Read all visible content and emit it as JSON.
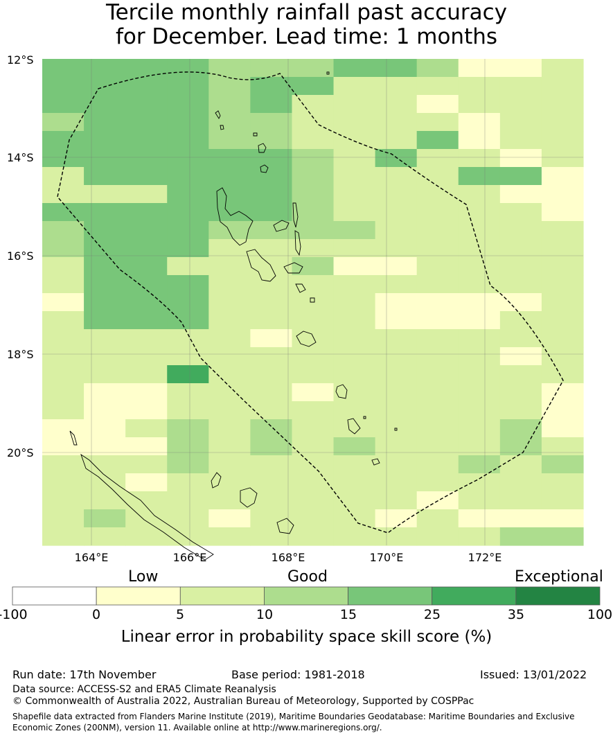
{
  "title": {
    "line1": "Tercile monthly rainfall past accuracy",
    "line2": "for December. Lead time: 1 months"
  },
  "map": {
    "lat_labels": [
      "12°S",
      "14°S",
      "16°S",
      "18°S",
      "20°S"
    ],
    "lon_labels": [
      "164°E",
      "166°E",
      "168°E",
      "170°E",
      "172°E"
    ],
    "boundary_style": "dashed",
    "grid": [
      "4444333443112",
      "4444344222222",
      "4444342221222",
      "3444332222122",
      "4444332224122",
      "4444443242212",
      "2444443222441",
      "2224443222211",
      "4444443222221",
      "3444333322222",
      "3444222222222",
      "2442223112222",
      "2444222222222",
      "1444222211112",
      "2444222211122",
      "2222212222222",
      "2222222222212",
      "2225222222222",
      "2112221222221",
      "2112222222221",
      "1123232222231",
      "1113232322232",
      "2223222222323",
      "2212222222222",
      "2222222221222",
      "2322122212111",
      "2222222222233"
    ]
  },
  "colorbar": {
    "categories": [
      "Low",
      "Good",
      "Exceptional"
    ],
    "ticks": [
      "-100",
      "0",
      "5",
      "10",
      "15",
      "25",
      "35",
      "100"
    ],
    "colors": [
      "#ffffff",
      "#ffffcc",
      "#d9f0a3",
      "#addd8e",
      "#78c679",
      "#41ab5d",
      "#238443"
    ],
    "title": "Linear error in probability space skill score (%)"
  },
  "footer": {
    "run_date": "Run date: 17th November",
    "base_period": "Base period: 1981-2018",
    "issued": "Issued: 13/01/2022",
    "data_source": "Data source: ACCESS-S2 and ERA5 Climate Reanalysis",
    "copyright": "© Commonwealth of Australia 2022, Australian Bureau of Meteorology, Supported by COSPPac",
    "shapefile_line1": "Shapefile data extracted from Flanders Marine Institute (2019), Maritime Boundaries Geodatabase: Maritime Boundaries and Exclusive",
    "shapefile_line2": "Economic Zones (200NM), version 11. Available online at http://www.marineregions.org/."
  }
}
